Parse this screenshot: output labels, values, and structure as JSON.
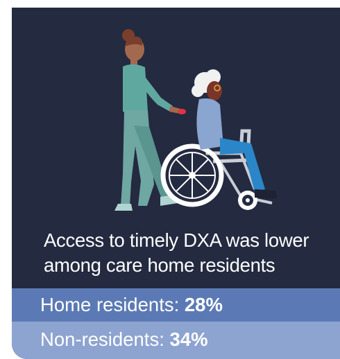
{
  "headline": {
    "line1": "Access to timely DXA was lower",
    "line2": "among care home residents"
  },
  "rows": [
    {
      "label": "Home residents: ",
      "value": "28%"
    },
    {
      "label": "Non-residents: ",
      "value": "34%"
    }
  ],
  "colors": {
    "background": "#242a40",
    "row_home": "#5b7ab5",
    "row_non": "#8da3d0",
    "text": "#ffffff"
  },
  "icons": [
    "nurse-illustration",
    "wheelchair-illustration",
    "elderly-resident-illustration"
  ]
}
